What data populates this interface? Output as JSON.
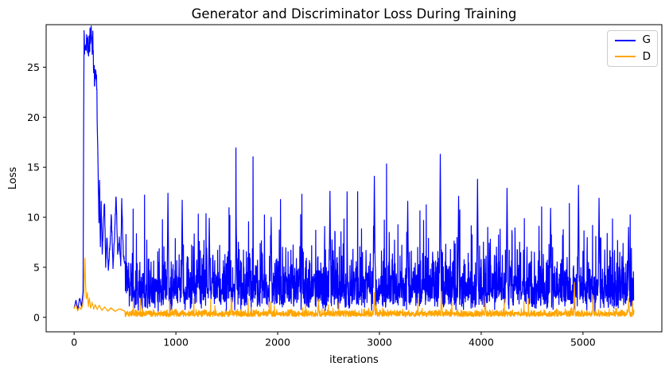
{
  "chart_data": {
    "type": "line",
    "title": "Generator and Discriminator Loss During Training",
    "xlabel": "iterations",
    "ylabel": "Loss",
    "x_ticks": [
      0,
      1000,
      2000,
      3000,
      4000,
      5000
    ],
    "y_ticks": [
      0,
      5,
      10,
      15,
      20,
      25
    ],
    "xlim": [
      -275,
      5775
    ],
    "ylim": [
      -1.45,
      29.25
    ],
    "grid": false,
    "background": "#ffffff",
    "spine_color": "#000000",
    "legend": {
      "position": "upper right",
      "entries": [
        {
          "label": "G",
          "color": "#0000ff"
        },
        {
          "label": "D",
          "color": "#ffa500"
        }
      ]
    },
    "x_range_points": {
      "start": 0,
      "end": 5500,
      "step": 2
    },
    "series": [
      {
        "name": "G",
        "color": "#0000ff",
        "seed": 1337,
        "head_end": 500,
        "head_keypoints": [
          [
            0,
            0.9
          ],
          [
            18,
            1.7
          ],
          [
            36,
            0.8
          ],
          [
            55,
            2.0
          ],
          [
            72,
            1.1
          ],
          [
            88,
            2.6
          ],
          [
            94,
            20.0
          ],
          [
            98,
            27.4
          ],
          [
            108,
            27.8
          ],
          [
            122,
            27.6
          ],
          [
            134,
            27.7
          ],
          [
            146,
            26.2
          ],
          [
            156,
            27.9
          ],
          [
            170,
            27.8
          ],
          [
            184,
            27.5
          ],
          [
            196,
            24.1
          ],
          [
            208,
            24.4
          ],
          [
            222,
            23.7
          ],
          [
            230,
            18.0
          ],
          [
            236,
            14.4
          ],
          [
            244,
            9.2
          ],
          [
            250,
            13.8
          ],
          [
            258,
            7.1
          ],
          [
            266,
            11.2
          ],
          [
            276,
            6.4
          ],
          [
            288,
            9.7
          ],
          [
            298,
            11.9
          ],
          [
            310,
            5.2
          ],
          [
            322,
            8.1
          ],
          [
            336,
            4.6
          ],
          [
            352,
            7.3
          ],
          [
            366,
            10.2
          ],
          [
            382,
            5.1
          ],
          [
            398,
            8.2
          ],
          [
            412,
            12.3
          ],
          [
            428,
            6.2
          ],
          [
            444,
            7.7
          ],
          [
            458,
            5.2
          ],
          [
            468,
            11.7
          ],
          [
            484,
            6.0
          ],
          [
            500,
            5.5
          ]
        ],
        "noise": {
          "type": "lognormal",
          "median": 2.9,
          "sigma": 0.5,
          "min": 0.22,
          "max": 24,
          "extra_p": 0.006,
          "extra_base": 7.5,
          "extra_scale": 2.2
        },
        "spike_halfwidth": 9,
        "spikes": [
          [
            921,
            12.4
          ],
          [
            1061,
            11.7
          ],
          [
            1327,
            9.9
          ],
          [
            1592,
            10.3
          ],
          [
            1935,
            10.0
          ],
          [
            2513,
            12.6
          ],
          [
            2950,
            14.1
          ],
          [
            3277,
            11.6
          ],
          [
            3597,
            16.3
          ],
          [
            3777,
            12.1
          ],
          [
            3964,
            13.8
          ],
          [
            4253,
            12.9
          ],
          [
            4682,
            10.9
          ],
          [
            4955,
            13.2
          ],
          [
            5158,
            11.9
          ],
          [
            5447,
            9.0
          ]
        ]
      },
      {
        "name": "D",
        "color": "#ffa500",
        "seed": 4242,
        "head_end": 500,
        "head_keypoints": [
          [
            0,
            0.85
          ],
          [
            16,
            1.3
          ],
          [
            34,
            0.65
          ],
          [
            52,
            1.05
          ],
          [
            70,
            0.8
          ],
          [
            86,
            1.25
          ],
          [
            96,
            2.2
          ],
          [
            102,
            4.4
          ],
          [
            106,
            6.0
          ],
          [
            112,
            3.3
          ],
          [
            120,
            1.8
          ],
          [
            130,
            2.4
          ],
          [
            140,
            1.1
          ],
          [
            150,
            1.9
          ],
          [
            162,
            0.9
          ],
          [
            176,
            1.5
          ],
          [
            192,
            0.85
          ],
          [
            208,
            1.25
          ],
          [
            226,
            0.8
          ],
          [
            248,
            1.2
          ],
          [
            272,
            0.7
          ],
          [
            300,
            1.05
          ],
          [
            330,
            0.62
          ],
          [
            362,
            0.95
          ],
          [
            400,
            0.6
          ],
          [
            448,
            0.85
          ],
          [
            500,
            0.6
          ]
        ],
        "noise": {
          "type": "halfnormal",
          "base": 0.07,
          "mean": 0.27,
          "sigma": 0.2,
          "extra_p": 0.012,
          "extra_base": 0.6,
          "extra_scale": 1.0
        },
        "spike_halfwidth": 7,
        "spikes": [
          [
            1545,
            2.0
          ],
          [
            2400,
            1.8
          ],
          [
            2950,
            2.5
          ],
          [
            3610,
            2.6
          ],
          [
            4040,
            1.9
          ],
          [
            4915,
            3.5
          ],
          [
            5100,
            2.2
          ],
          [
            5450,
            1.9
          ]
        ]
      }
    ]
  }
}
